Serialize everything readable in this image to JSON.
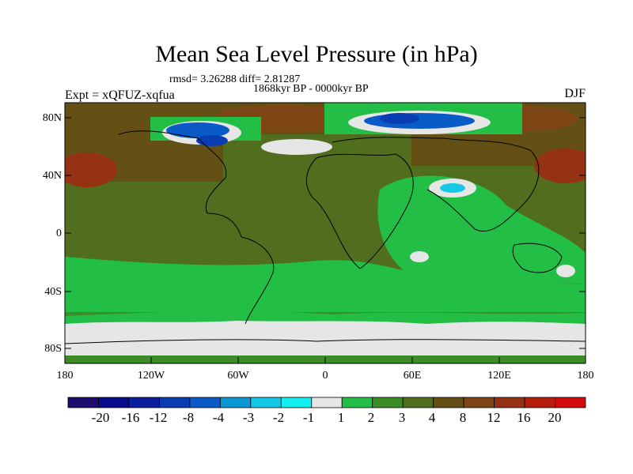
{
  "title": "Mean Sea Level Pressure (in hPa)",
  "stats_line": "rmsd= 3.26288 diff= 2.81287",
  "period_line": "1868kyr BP - 0000kyr BP",
  "experiment_label": "Expt = xQFUZ-xqfua",
  "season_label": "DJF",
  "lat_ticks": [
    "80N",
    "40N",
    "0",
    "40S",
    "80S"
  ],
  "lon_ticks": [
    "180",
    "120W",
    "60W",
    "0",
    "60E",
    "120E",
    "180"
  ],
  "colorbar": {
    "colors": [
      "#1e0d6e",
      "#0a0a8c",
      "#0a1e9e",
      "#0a3cb4",
      "#0a5ac8",
      "#0a96d2",
      "#14c8e6",
      "#14f0f0",
      "#e6e6e6",
      "#22be46",
      "#3c8c28",
      "#506e1e",
      "#645014",
      "#7d4614",
      "#963214",
      "#b41e0a",
      "#d20a0a"
    ],
    "labels": [
      "-20",
      "-16",
      "-12",
      "-8",
      "-4",
      "-3",
      "-2",
      "-1",
      "1",
      "2",
      "3",
      "4",
      "8",
      "12",
      "16",
      "20"
    ]
  },
  "field_colors": {
    "background": "#506e1e",
    "brown": "#645014",
    "dark_brown": "#7d4614",
    "rust": "#963214",
    "light_green": "#3c8c28",
    "green": "#22be46",
    "white": "#e6e6e6",
    "cyan": "#14c8e6",
    "blue": "#0a5ac8",
    "dark_blue": "#0a3cb4"
  }
}
